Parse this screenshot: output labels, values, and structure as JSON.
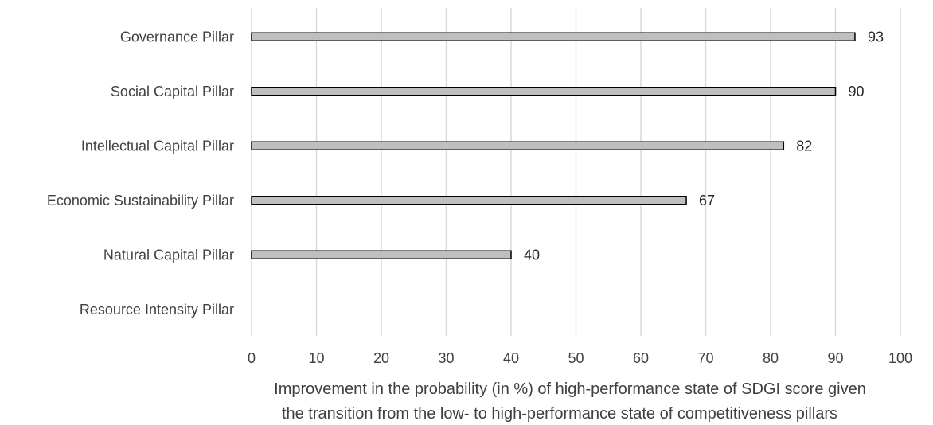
{
  "chart_data": {
    "type": "bar",
    "orientation": "horizontal",
    "categories": [
      "Governance Pillar",
      "Social Capital Pillar",
      "Intellectual Capital Pillar",
      "Economic Sustainability Pillar",
      "Natural Capital Pillar",
      "Resource Intensity Pillar"
    ],
    "values": [
      93,
      90,
      82,
      67,
      40,
      0
    ],
    "data_labels": [
      "93",
      "90",
      "82",
      "67",
      "40",
      ""
    ],
    "title": "",
    "xlabel": [
      "Improvement in the probability (in %) of high-performance state of SDGI score given",
      "the transition from the low- to high-performance state of competitiveness pillars"
    ],
    "ylabel": "",
    "xlim": [
      0,
      100
    ],
    "xticks": [
      "0",
      "10",
      "20",
      "30",
      "40",
      "50",
      "60",
      "70",
      "80",
      "90",
      "100"
    ],
    "grid": "vertical",
    "legend": "none",
    "colors": {
      "bar_fill": "#bfbfbf",
      "bar_stroke": "#000000",
      "grid": "#d9d9d9",
      "text": "#404040"
    }
  }
}
